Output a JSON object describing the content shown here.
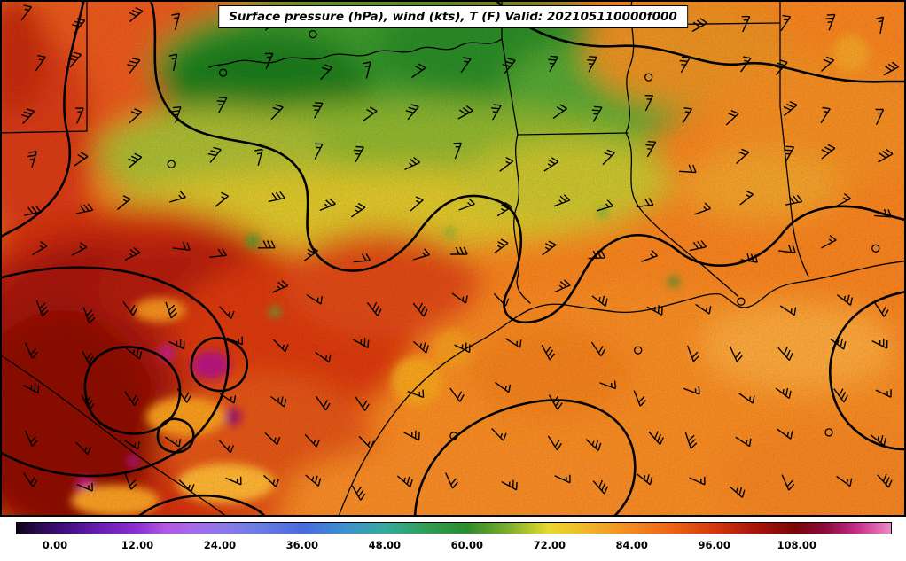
{
  "header": {
    "title": "Surface pressure (hPa), wind (kts), T (F) Valid: 202105110000f000"
  },
  "colorbar": {
    "ticks": [
      "0.00",
      "12.00",
      "24.00",
      "36.00",
      "48.00",
      "60.00",
      "72.00",
      "84.00",
      "96.00",
      "108.00"
    ],
    "gradient": [
      {
        "p": 0,
        "c": "#0d021a"
      },
      {
        "p": 2.5,
        "c": "#2a0a50"
      },
      {
        "p": 5,
        "c": "#3d0d78"
      },
      {
        "p": 9,
        "c": "#641bae"
      },
      {
        "p": 13.9,
        "c": "#8f2fd4"
      },
      {
        "p": 17,
        "c": "#b457e2"
      },
      {
        "p": 20,
        "c": "#a66ae8"
      },
      {
        "p": 23.3,
        "c": "#8f79e8"
      },
      {
        "p": 28,
        "c": "#6a7ae4"
      },
      {
        "p": 32.7,
        "c": "#4a6ade"
      },
      {
        "p": 37.4,
        "c": "#3e8fd0"
      },
      {
        "p": 42.1,
        "c": "#35ab9e"
      },
      {
        "p": 46.8,
        "c": "#2f9e55"
      },
      {
        "p": 51.5,
        "c": "#2e8b2e"
      },
      {
        "p": 56.2,
        "c": "#7cae2e"
      },
      {
        "p": 60.9,
        "c": "#e8da2f"
      },
      {
        "p": 65.6,
        "c": "#f2b128"
      },
      {
        "p": 70.3,
        "c": "#f28a20"
      },
      {
        "p": 75,
        "c": "#ec6414"
      },
      {
        "p": 79.7,
        "c": "#d43a0e"
      },
      {
        "p": 84.4,
        "c": "#aa150a"
      },
      {
        "p": 89.1,
        "c": "#7c0508"
      },
      {
        "p": 92.5,
        "c": "#8c0a3e"
      },
      {
        "p": 96,
        "c": "#c42c86"
      },
      {
        "p": 100,
        "c": "#ee8ac8"
      }
    ]
  },
  "chart_data": {
    "type": "heatmap",
    "title": "Surface pressure (hPa), wind (kts), T (F) Valid: 202105110000f000",
    "colorbar_ticks": [
      0,
      12,
      24,
      36,
      48,
      60,
      72,
      84,
      96,
      108
    ],
    "overlays": [
      "surface pressure contours (hPa)",
      "wind barbs (kts)",
      "temperature shading (F)"
    ]
  }
}
